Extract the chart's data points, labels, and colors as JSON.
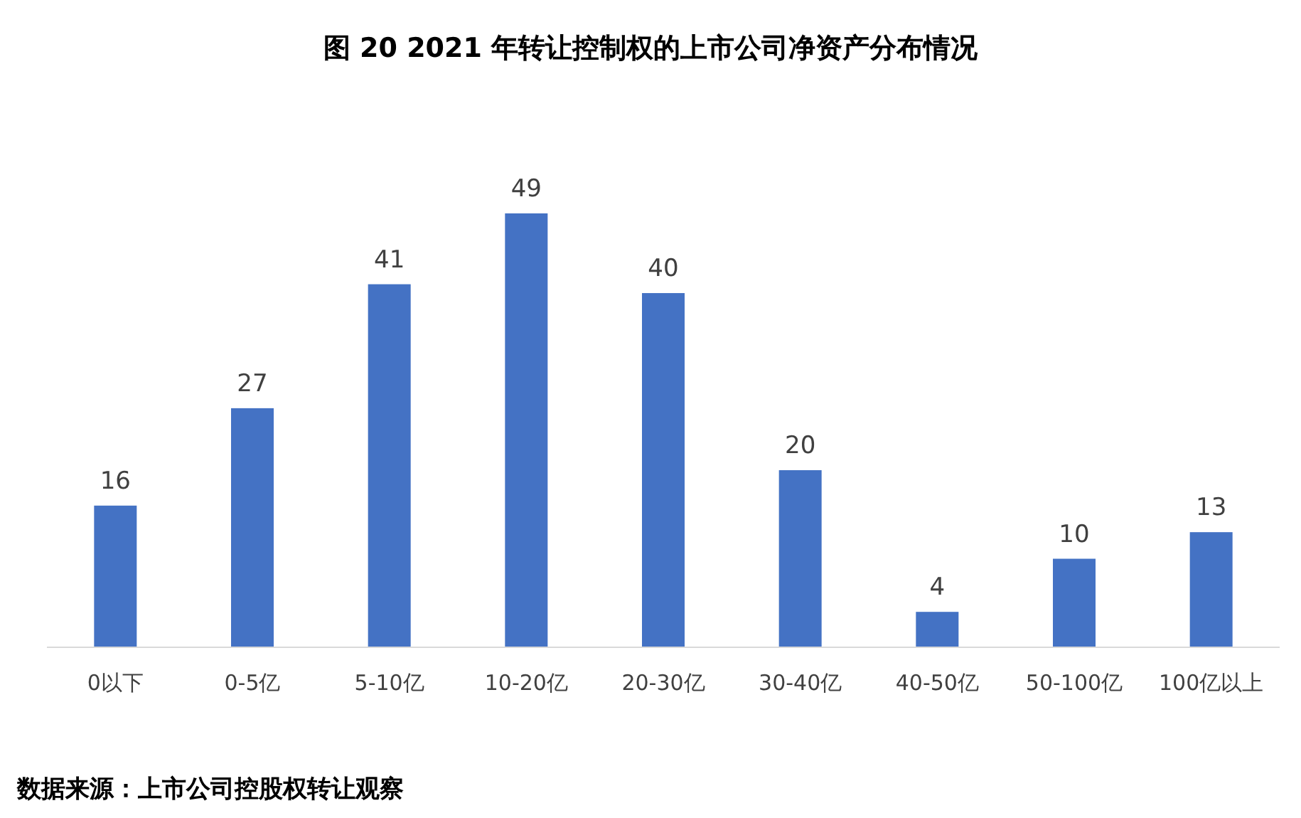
{
  "chart_data": {
    "type": "bar",
    "title": "图 20 2021 年转让控制权的上市公司净资产分布情况",
    "categories": [
      "0以下",
      "0-5亿",
      "5-10亿",
      "10-20亿",
      "20-30亿",
      "30-40亿",
      "40-50亿",
      "50-100亿",
      "100亿以上"
    ],
    "values": [
      16,
      27,
      41,
      49,
      40,
      20,
      4,
      10,
      13
    ],
    "color": "#4472c4",
    "data_labels": true,
    "annotations": [
      "数据来源：上市公司控股权转让观察"
    ]
  }
}
